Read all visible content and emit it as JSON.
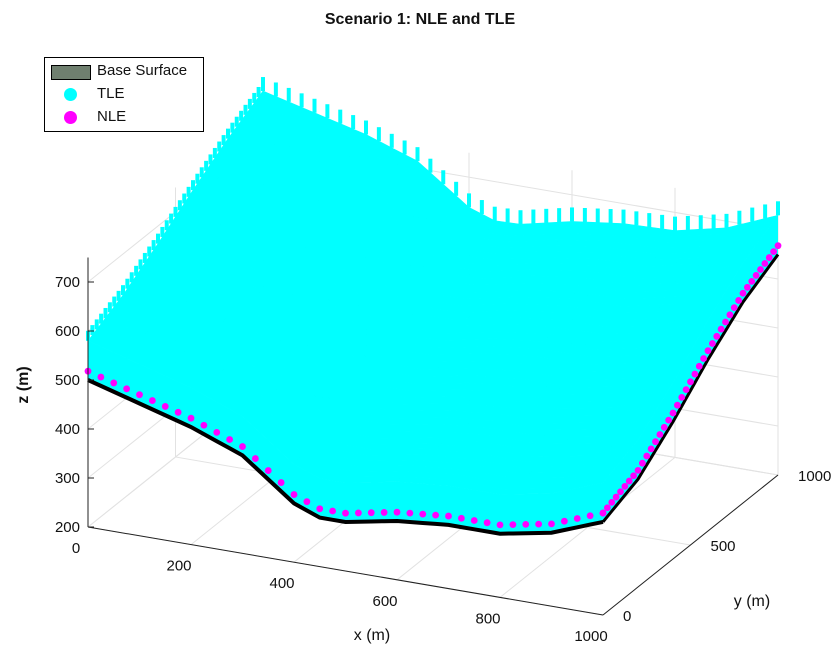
{
  "chart_data": {
    "type": "surface3d",
    "title": "Scenario 1: NLE and TLE",
    "xlabel": "x (m)",
    "ylabel": "y (m)",
    "zlabel": "z (m)",
    "xlim": [
      0,
      1000
    ],
    "ylim": [
      0,
      1000
    ],
    "zlim": [
      200,
      750
    ],
    "xticks": [
      "0",
      "200",
      "400",
      "600",
      "800",
      "1000"
    ],
    "yticks": [
      "0",
      "500",
      "1000"
    ],
    "zticks": [
      "200",
      "300",
      "400",
      "500",
      "600",
      "700"
    ],
    "grid": true,
    "legend_position": "top-left",
    "series": [
      {
        "name": "Base Surface",
        "kind": "surface",
        "color": "#6f7f6f"
      },
      {
        "name": "TLE",
        "kind": "points",
        "color": "#00ffff"
      },
      {
        "name": "NLE",
        "kind": "points",
        "color": "#ff00ff"
      }
    ],
    "front_edge_y0": {
      "x": [
        0,
        100,
        200,
        300,
        400,
        450,
        500,
        600,
        700,
        800,
        900,
        1000
      ],
      "z": [
        500,
        470,
        440,
        400,
        320,
        300,
        300,
        320,
        330,
        330,
        350,
        390
      ]
    },
    "right_edge_x1000": {
      "y": [
        0,
        200,
        400,
        600,
        800,
        1000
      ],
      "z": [
        390,
        420,
        480,
        550,
        610,
        650
      ]
    }
  }
}
